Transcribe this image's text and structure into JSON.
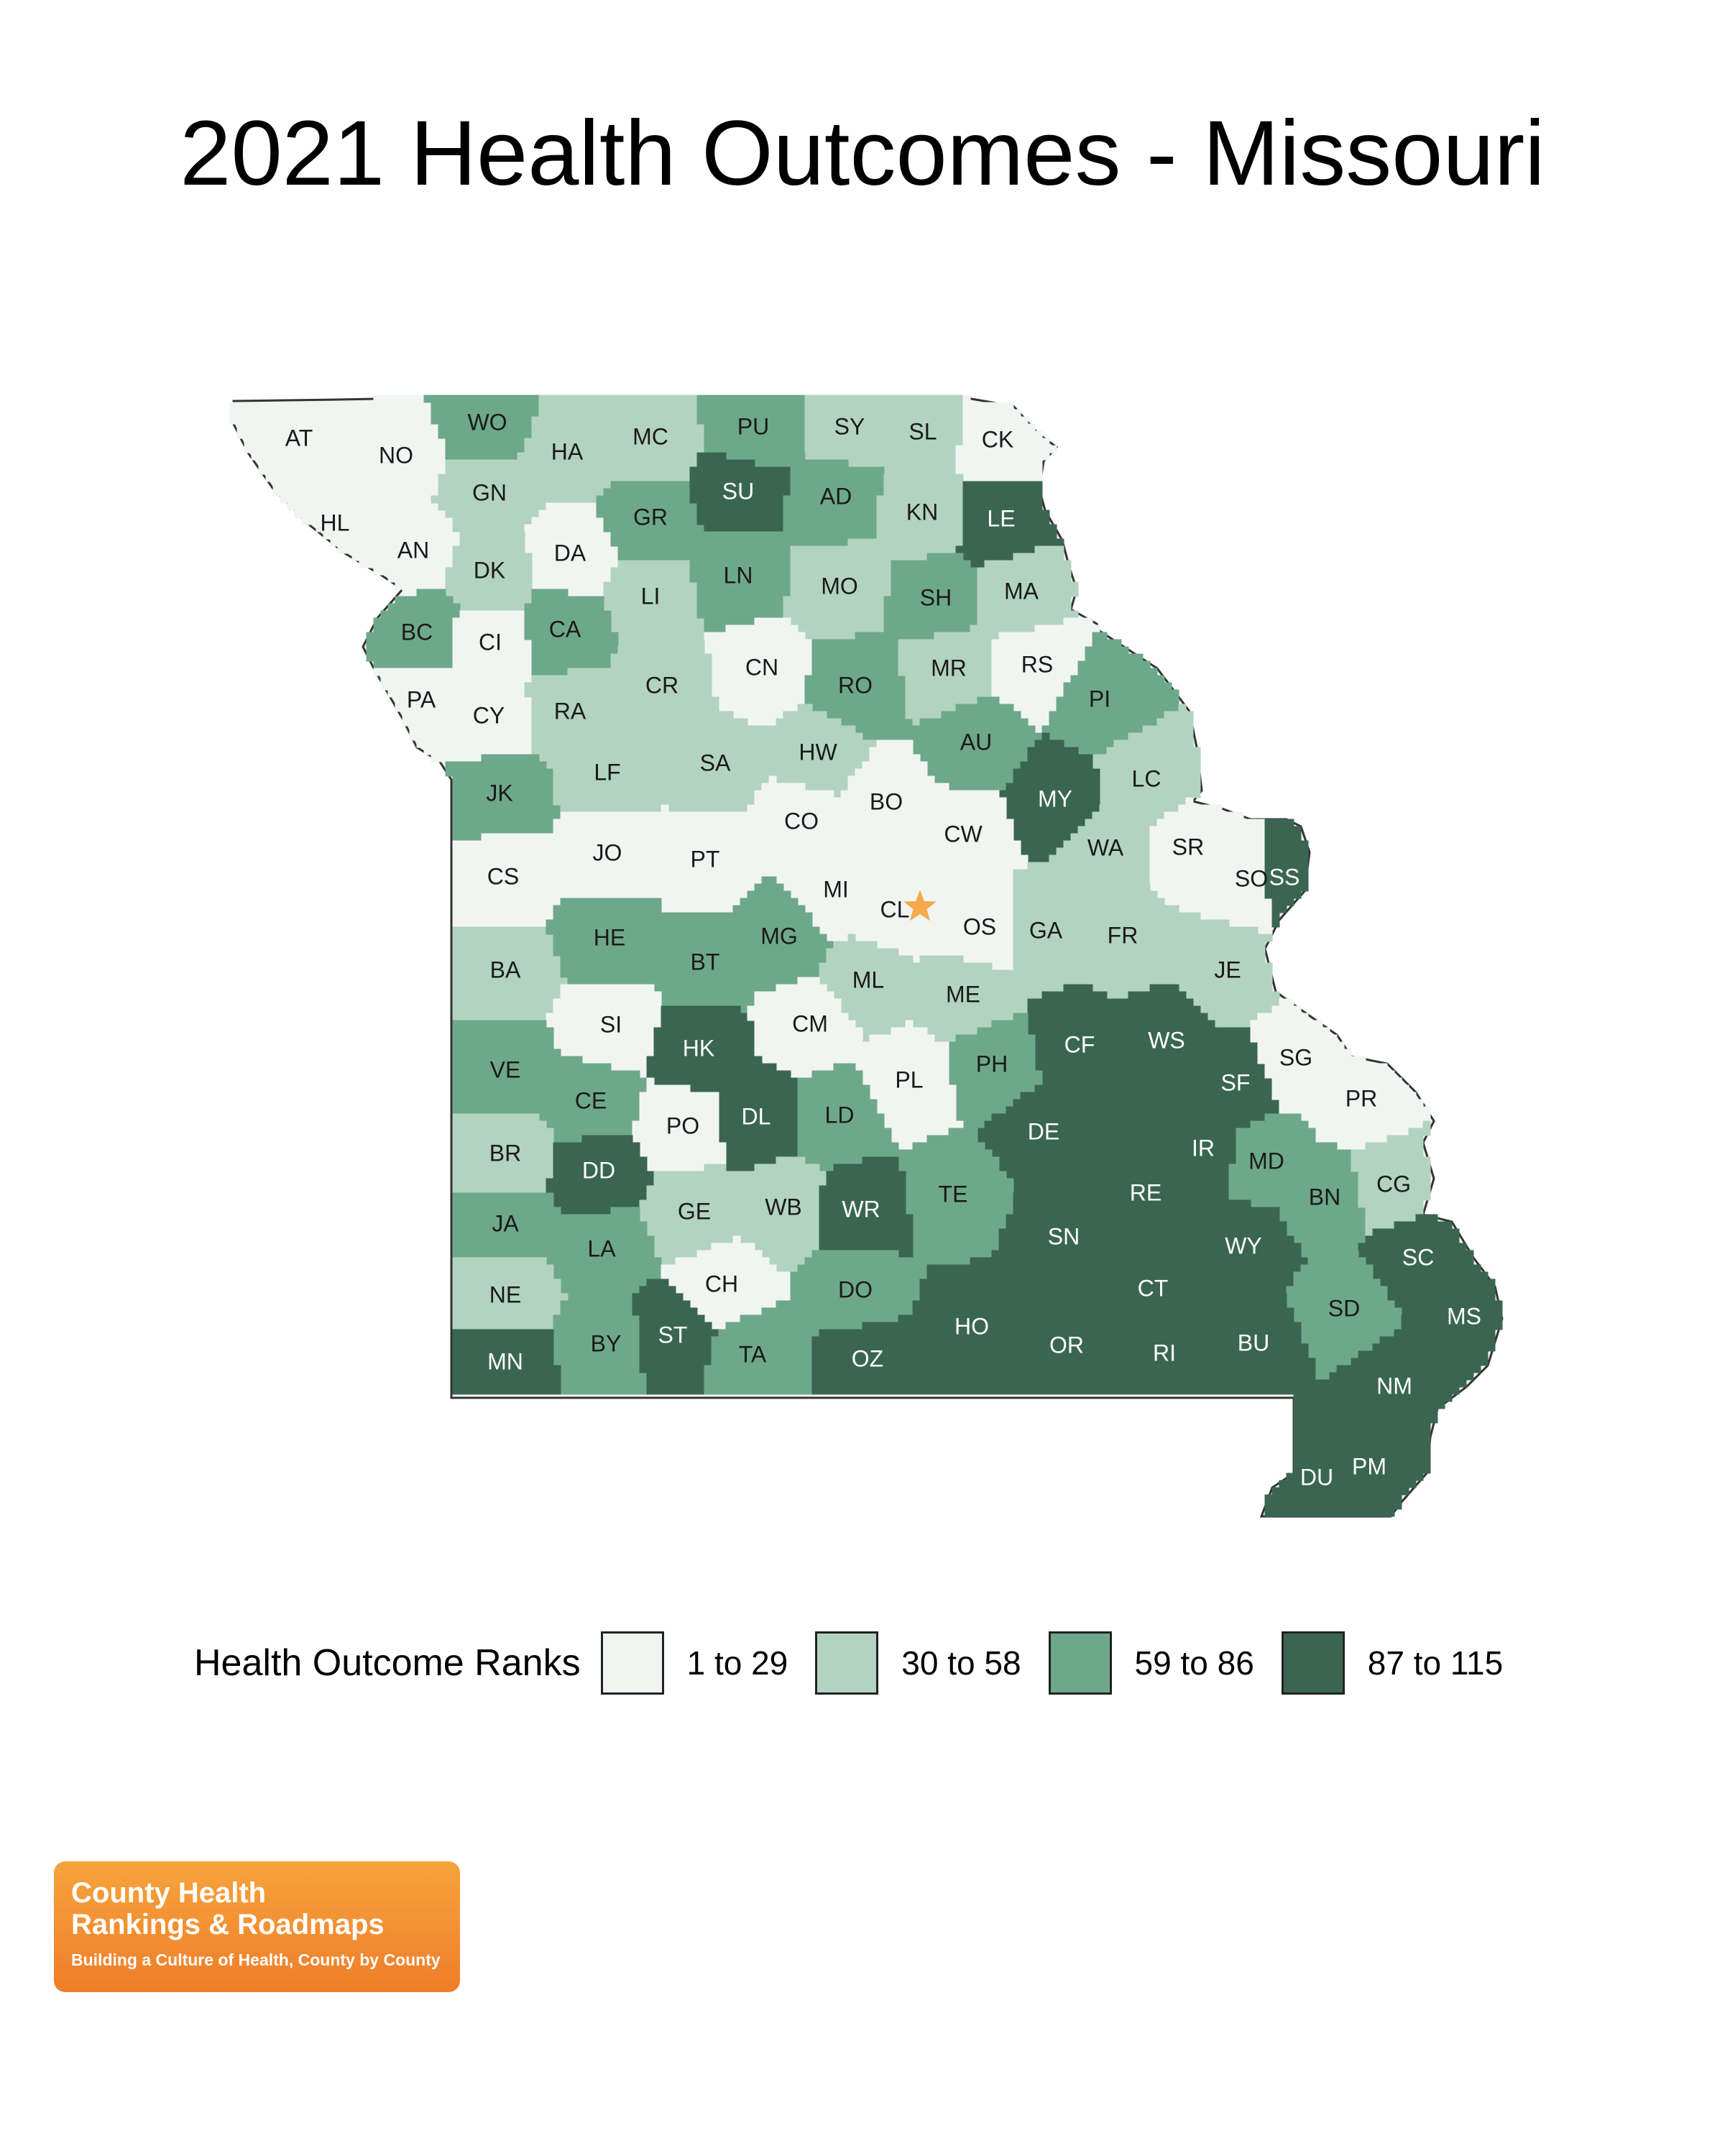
{
  "title": "2021 Health Outcomes - Missouri",
  "legend": {
    "title": "Health Outcome Ranks",
    "bins": [
      {
        "label": "1 to 29",
        "color": "#f1f5f2"
      },
      {
        "label": "30 to 58",
        "color": "#b3d3c1"
      },
      {
        "label": "59 to 86",
        "color": "#6ea88a"
      },
      {
        "label": "87 to 115",
        "color": "#3a6651"
      }
    ]
  },
  "map_marker": {
    "icon": "star-icon",
    "color": "#f5a94a",
    "county": "CL"
  },
  "counties": [
    {
      "code": "AT",
      "bin": 0
    },
    {
      "code": "NO",
      "bin": 0
    },
    {
      "code": "WO",
      "bin": 2
    },
    {
      "code": "HA",
      "bin": 1
    },
    {
      "code": "MC",
      "bin": 1
    },
    {
      "code": "PU",
      "bin": 2
    },
    {
      "code": "SY",
      "bin": 1
    },
    {
      "code": "SL",
      "bin": 1
    },
    {
      "code": "CK",
      "bin": 0
    },
    {
      "code": "HL",
      "bin": 0
    },
    {
      "code": "AN",
      "bin": 0
    },
    {
      "code": "GN",
      "bin": 1
    },
    {
      "code": "DA",
      "bin": 0
    },
    {
      "code": "GR",
      "bin": 2
    },
    {
      "code": "SU",
      "bin": 3
    },
    {
      "code": "AD",
      "bin": 2
    },
    {
      "code": "KN",
      "bin": 1
    },
    {
      "code": "LE",
      "bin": 3
    },
    {
      "code": "DK",
      "bin": 1
    },
    {
      "code": "LI",
      "bin": 1
    },
    {
      "code": "LN",
      "bin": 2
    },
    {
      "code": "MO",
      "bin": 1
    },
    {
      "code": "SH",
      "bin": 2
    },
    {
      "code": "MA",
      "bin": 1
    },
    {
      "code": "BC",
      "bin": 2
    },
    {
      "code": "CI",
      "bin": 0
    },
    {
      "code": "CA",
      "bin": 2
    },
    {
      "code": "CN",
      "bin": 0
    },
    {
      "code": "RO",
      "bin": 2
    },
    {
      "code": "MR",
      "bin": 1
    },
    {
      "code": "RS",
      "bin": 0
    },
    {
      "code": "PA",
      "bin": 0
    },
    {
      "code": "CY",
      "bin": 0
    },
    {
      "code": "RA",
      "bin": 1
    },
    {
      "code": "CR",
      "bin": 1
    },
    {
      "code": "PI",
      "bin": 2
    },
    {
      "code": "AU",
      "bin": 2
    },
    {
      "code": "HW",
      "bin": 1
    },
    {
      "code": "LC",
      "bin": 1
    },
    {
      "code": "JK",
      "bin": 2
    },
    {
      "code": "LF",
      "bin": 1
    },
    {
      "code": "SA",
      "bin": 1
    },
    {
      "code": "BO",
      "bin": 0
    },
    {
      "code": "MY",
      "bin": 3
    },
    {
      "code": "CO",
      "bin": 0
    },
    {
      "code": "CW",
      "bin": 0
    },
    {
      "code": "WA",
      "bin": 1
    },
    {
      "code": "SR",
      "bin": 0
    },
    {
      "code": "CS",
      "bin": 0
    },
    {
      "code": "JO",
      "bin": 0
    },
    {
      "code": "PT",
      "bin": 0
    },
    {
      "code": "MI",
      "bin": 0
    },
    {
      "code": "SO",
      "bin": 0
    },
    {
      "code": "SS",
      "bin": 3
    },
    {
      "code": "CL",
      "bin": 0
    },
    {
      "code": "OS",
      "bin": 0
    },
    {
      "code": "GA",
      "bin": 1
    },
    {
      "code": "FR",
      "bin": 1
    },
    {
      "code": "BA",
      "bin": 1
    },
    {
      "code": "HE",
      "bin": 2
    },
    {
      "code": "BT",
      "bin": 2
    },
    {
      "code": "MG",
      "bin": 2
    },
    {
      "code": "ML",
      "bin": 1
    },
    {
      "code": "ME",
      "bin": 1
    },
    {
      "code": "JE",
      "bin": 1
    },
    {
      "code": "SI",
      "bin": 0
    },
    {
      "code": "HK",
      "bin": 3
    },
    {
      "code": "CM",
      "bin": 0
    },
    {
      "code": "CF",
      "bin": 3
    },
    {
      "code": "WS",
      "bin": 3
    },
    {
      "code": "VE",
      "bin": 2
    },
    {
      "code": "PH",
      "bin": 2
    },
    {
      "code": "PL",
      "bin": 0
    },
    {
      "code": "SF",
      "bin": 3
    },
    {
      "code": "SG",
      "bin": 0
    },
    {
      "code": "CE",
      "bin": 2
    },
    {
      "code": "DL",
      "bin": 3
    },
    {
      "code": "LD",
      "bin": 2
    },
    {
      "code": "PR",
      "bin": 0
    },
    {
      "code": "BR",
      "bin": 1
    },
    {
      "code": "PO",
      "bin": 0
    },
    {
      "code": "DE",
      "bin": 3
    },
    {
      "code": "IR",
      "bin": 3
    },
    {
      "code": "MD",
      "bin": 2
    },
    {
      "code": "DD",
      "bin": 3
    },
    {
      "code": "TE",
      "bin": 2
    },
    {
      "code": "RE",
      "bin": 3
    },
    {
      "code": "BN",
      "bin": 2
    },
    {
      "code": "CG",
      "bin": 1
    },
    {
      "code": "JA",
      "bin": 2
    },
    {
      "code": "GE",
      "bin": 1
    },
    {
      "code": "WB",
      "bin": 1
    },
    {
      "code": "WR",
      "bin": 3
    },
    {
      "code": "SN",
      "bin": 3
    },
    {
      "code": "WY",
      "bin": 3
    },
    {
      "code": "LA",
      "bin": 2
    },
    {
      "code": "SC",
      "bin": 3
    },
    {
      "code": "NE",
      "bin": 1
    },
    {
      "code": "CH",
      "bin": 0
    },
    {
      "code": "DO",
      "bin": 2
    },
    {
      "code": "CT",
      "bin": 3
    },
    {
      "code": "SD",
      "bin": 2
    },
    {
      "code": "MS",
      "bin": 3
    },
    {
      "code": "HO",
      "bin": 3
    },
    {
      "code": "BY",
      "bin": 2
    },
    {
      "code": "ST",
      "bin": 3
    },
    {
      "code": "OR",
      "bin": 3
    },
    {
      "code": "BU",
      "bin": 3
    },
    {
      "code": "MN",
      "bin": 3
    },
    {
      "code": "TA",
      "bin": 2
    },
    {
      "code": "OZ",
      "bin": 3
    },
    {
      "code": "RI",
      "bin": 3
    },
    {
      "code": "NM",
      "bin": 3
    },
    {
      "code": "PM",
      "bin": 3
    },
    {
      "code": "DU",
      "bin": 3
    }
  ],
  "logo": {
    "line1": "County Health",
    "line2": "Rankings & Roadmaps",
    "tagline": "Building a Culture of Health, County by County"
  }
}
